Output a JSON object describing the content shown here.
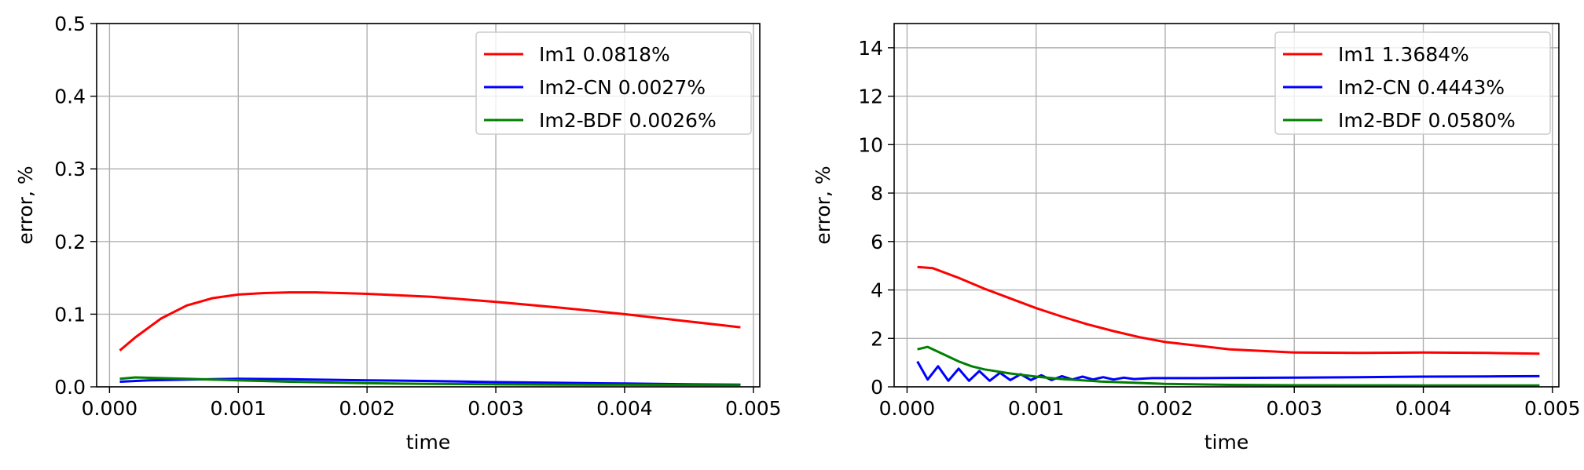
{
  "chart_data": [
    {
      "type": "line",
      "xlabel": "time",
      "ylabel": "error, %",
      "xlim": [
        -0.0001,
        0.00505
      ],
      "ylim": [
        0,
        0.5
      ],
      "xticks": [
        0.0,
        0.001,
        0.002,
        0.003,
        0.004,
        0.005
      ],
      "xtick_labels": [
        "0.000",
        "0.001",
        "0.002",
        "0.003",
        "0.004",
        "0.005"
      ],
      "yticks": [
        0.0,
        0.1,
        0.2,
        0.3,
        0.4,
        0.5
      ],
      "ytick_labels": [
        "0.0",
        "0.1",
        "0.2",
        "0.3",
        "0.4",
        "0.5"
      ],
      "grid": true,
      "legend": "top-right",
      "series": [
        {
          "name": "Im1 0.0818%",
          "color": "#ff0000",
          "x": [
            8e-05,
            0.0002,
            0.0004,
            0.0006,
            0.0008,
            0.001,
            0.0012,
            0.0014,
            0.0016,
            0.0018,
            0.002,
            0.0025,
            0.003,
            0.0035,
            0.004,
            0.0045,
            0.0049
          ],
          "y": [
            0.05,
            0.068,
            0.094,
            0.112,
            0.122,
            0.127,
            0.129,
            0.13,
            0.13,
            0.129,
            0.128,
            0.124,
            0.117,
            0.109,
            0.1,
            0.09,
            0.082
          ]
        },
        {
          "name": "Im2-CN 0.0027%",
          "color": "#0000ff",
          "x": [
            8e-05,
            0.0003,
            0.0006,
            0.001,
            0.0014,
            0.002,
            0.0025,
            0.003,
            0.0035,
            0.004,
            0.0045,
            0.0049
          ],
          "y": [
            0.007,
            0.009,
            0.01,
            0.011,
            0.0105,
            0.009,
            0.008,
            0.0065,
            0.0055,
            0.0045,
            0.0035,
            0.003
          ]
        },
        {
          "name": "Im2-BDF 0.0026%",
          "color": "#008000",
          "x": [
            8e-05,
            0.0002,
            0.0004,
            0.0006,
            0.0008,
            0.001,
            0.0014,
            0.002,
            0.0025,
            0.003,
            0.0035,
            0.004,
            0.0045,
            0.0049
          ],
          "y": [
            0.011,
            0.013,
            0.012,
            0.011,
            0.01,
            0.009,
            0.007,
            0.005,
            0.004,
            0.0035,
            0.003,
            0.0028,
            0.0026,
            0.0025
          ]
        }
      ]
    },
    {
      "type": "line",
      "xlabel": "time",
      "ylabel": "error, %",
      "xlim": [
        -0.0001,
        0.00505
      ],
      "ylim": [
        0,
        15
      ],
      "xticks": [
        0.0,
        0.001,
        0.002,
        0.003,
        0.004,
        0.005
      ],
      "xtick_labels": [
        "0.000",
        "0.001",
        "0.002",
        "0.003",
        "0.004",
        "0.005"
      ],
      "yticks": [
        0,
        2,
        4,
        6,
        8,
        10,
        12,
        14
      ],
      "ytick_labels": [
        "0",
        "2",
        "4",
        "6",
        "8",
        "10",
        "12",
        "14"
      ],
      "grid": true,
      "legend": "top-right",
      "series": [
        {
          "name": "Im1 1.3684%",
          "color": "#ff0000",
          "x": [
            8e-05,
            0.0002,
            0.0004,
            0.0006,
            0.0008,
            0.001,
            0.0012,
            0.0014,
            0.0016,
            0.0018,
            0.002,
            0.0025,
            0.003,
            0.0035,
            0.004,
            0.0045,
            0.0049
          ],
          "y": [
            4.95,
            4.9,
            4.5,
            4.05,
            3.65,
            3.25,
            2.9,
            2.58,
            2.3,
            2.05,
            1.85,
            1.55,
            1.42,
            1.4,
            1.42,
            1.4,
            1.37
          ]
        },
        {
          "name": "Im2-CN 0.4443%",
          "color": "#0000ff",
          "x": [
            8e-05,
            0.00016,
            0.00024,
            0.00032,
            0.0004,
            0.00048,
            0.00056,
            0.00064,
            0.00072,
            0.0008,
            0.00088,
            0.00096,
            0.00104,
            0.00112,
            0.0012,
            0.00128,
            0.00136,
            0.00144,
            0.00152,
            0.0016,
            0.00168,
            0.00176,
            0.0019,
            0.0022,
            0.0025,
            0.003,
            0.0035,
            0.004,
            0.0045,
            0.0049
          ],
          "y": [
            1.05,
            0.3,
            0.85,
            0.25,
            0.75,
            0.25,
            0.65,
            0.25,
            0.58,
            0.28,
            0.52,
            0.28,
            0.48,
            0.28,
            0.44,
            0.3,
            0.42,
            0.3,
            0.4,
            0.3,
            0.38,
            0.32,
            0.36,
            0.36,
            0.37,
            0.38,
            0.4,
            0.42,
            0.43,
            0.44
          ]
        },
        {
          "name": "Im2-BDF 0.0580%",
          "color": "#008000",
          "x": [
            8e-05,
            0.00016,
            0.0003,
            0.0004,
            0.0005,
            0.0006,
            0.0008,
            0.001,
            0.0012,
            0.0015,
            0.002,
            0.0025,
            0.003,
            0.0035,
            0.004,
            0.0045,
            0.0049
          ],
          "y": [
            1.55,
            1.65,
            1.3,
            1.05,
            0.85,
            0.72,
            0.55,
            0.42,
            0.32,
            0.22,
            0.12,
            0.08,
            0.065,
            0.06,
            0.058,
            0.058,
            0.058
          ]
        }
      ]
    }
  ]
}
